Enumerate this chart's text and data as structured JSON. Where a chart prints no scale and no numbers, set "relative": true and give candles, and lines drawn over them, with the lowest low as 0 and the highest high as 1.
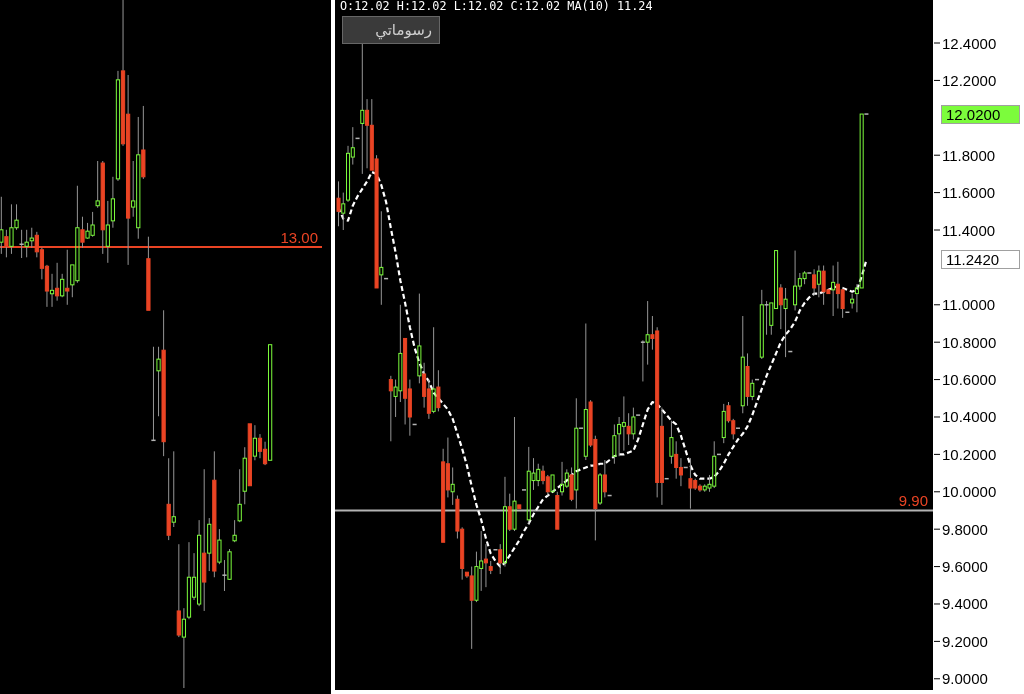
{
  "chart_data": [
    {
      "type": "candlestick",
      "relative": true,
      "categories": [
        null,
        null,
        null,
        null,
        null,
        null,
        null,
        null,
        null,
        null,
        null,
        null,
        null,
        null,
        null,
        null,
        null,
        null,
        null,
        null,
        null,
        null,
        null,
        null,
        null,
        null,
        null,
        null,
        null,
        null,
        null,
        null,
        null,
        null,
        null,
        null,
        null,
        null,
        null,
        null,
        null,
        null,
        null,
        null,
        null,
        null,
        null,
        null,
        null,
        null,
        null,
        null,
        null,
        null
      ],
      "ohlc": [
        [
          0.648,
          0.714,
          0.631,
          0.666
        ],
        [
          0.656,
          0.666,
          0.626,
          0.642
        ],
        [
          0.642,
          0.703,
          0.631,
          0.669
        ],
        [
          0.669,
          0.703,
          0.666,
          0.68
        ],
        [
          0.645,
          0.666,
          0.625,
          0.645
        ],
        [
          0.642,
          0.666,
          0.626,
          0.648
        ],
        [
          0.65,
          0.669,
          0.64,
          0.654
        ],
        [
          0.658,
          0.663,
          0.626,
          0.634
        ],
        [
          0.637,
          0.64,
          0.594,
          0.61
        ],
        [
          0.613,
          0.615,
          0.554,
          0.577
        ],
        [
          0.573,
          0.602,
          0.554,
          0.578
        ],
        [
          0.581,
          0.618,
          0.563,
          0.57
        ],
        [
          0.57,
          0.602,
          0.568,
          0.594
        ],
        [
          0.581,
          0.637,
          0.557,
          0.577
        ],
        [
          0.586,
          0.615,
          0.568,
          0.615
        ],
        [
          0.592,
          0.73,
          0.589,
          0.669
        ],
        [
          0.666,
          0.685,
          0.64,
          0.648
        ],
        [
          0.654,
          0.676,
          0.653,
          0.664
        ],
        [
          0.658,
          0.692,
          0.656,
          0.673
        ],
        [
          0.701,
          0.766,
          0.698,
          0.708
        ],
        [
          0.763,
          0.766,
          0.631,
          0.666
        ],
        [
          0.642,
          0.708,
          0.618,
          0.673
        ],
        [
          0.679,
          0.743,
          0.669,
          0.711
        ],
        [
          0.74,
          0.897,
          0.737,
          0.884
        ],
        [
          0.897,
          1.0,
          0.788,
          0.791
        ],
        [
          0.834,
          0.891,
          0.615,
          0.683
        ],
        [
          0.699,
          0.766,
          0.685,
          0.708
        ],
        [
          0.669,
          0.83,
          0.653,
          0.775
        ],
        [
          0.782,
          0.846,
          0.74,
          0.743
        ],
        [
          0.624,
          0.656,
          0.549,
          0.549
        ],
        [
          0.36,
          0.496,
          0.36,
          0.36
        ],
        [
          0.461,
          0.496,
          0.395,
          0.478
        ],
        [
          0.491,
          0.549,
          0.337,
          0.358
        ],
        [
          0.267,
          0.334,
          0.215,
          0.222
        ],
        [
          0.241,
          0.344,
          0.234,
          0.249
        ],
        [
          0.112,
          0.209,
          0.074,
          0.077
        ],
        [
          0.074,
          0.116,
          0.0,
          0.1
        ],
        [
          0.103,
          0.212,
          0.1,
          0.161
        ],
        [
          0.132,
          0.196,
          0.128,
          0.161
        ],
        [
          0.122,
          0.244,
          0.119,
          0.222
        ],
        [
          0.196,
          0.318,
          0.112,
          0.154
        ],
        [
          0.196,
          0.247,
          0.17,
          0.238
        ],
        [
          0.302,
          0.344,
          0.161,
          0.17
        ],
        [
          0.183,
          0.231,
          0.18,
          0.215
        ],
        [
          0.164,
          0.186,
          0.141,
          0.164
        ],
        [
          0.158,
          0.202,
          0.157,
          0.198
        ],
        [
          0.214,
          0.244,
          0.212,
          0.222
        ],
        [
          0.243,
          0.318,
          0.241,
          0.267
        ],
        [
          0.286,
          0.35,
          0.267,
          0.334
        ],
        [
          0.384,
          0.384,
          0.294,
          0.294
        ],
        [
          0.337,
          0.382,
          0.331,
          0.363
        ],
        [
          0.363,
          0.369,
          0.334,
          0.344
        ],
        [
          0.347,
          0.358,
          0.324,
          0.326
        ],
        [
          0.331,
          0.499,
          0.331,
          0.499
        ]
      ],
      "colors": [
        "#7CFC3C",
        "#EA4424",
        "#7CFC3C",
        "#7CFC3C",
        "#B4B4B4",
        "#7CFC3C",
        "#7CFC3C",
        "#EA4424",
        "#EA4424",
        "#EA4424",
        "#7CFC3C",
        "#EA4424",
        "#7CFC3C",
        "#EA4424",
        "#7CFC3C",
        "#7CFC3C",
        "#EA4424",
        "#7CFC3C",
        "#7CFC3C",
        "#7CFC3C",
        "#EA4424",
        "#7CFC3C",
        "#7CFC3C",
        "#7CFC3C",
        "#EA4424",
        "#EA4424",
        "#7CFC3C",
        "#7CFC3C",
        "#EA4424",
        "#EA4424",
        "#B4B4B4",
        "#7CFC3C",
        "#EA4424",
        "#EA4424",
        "#7CFC3C",
        "#EA4424",
        "#7CFC3C",
        "#7CFC3C",
        "#7CFC3C",
        "#7CFC3C",
        "#EA4424",
        "#7CFC3C",
        "#EA4424",
        "#7CFC3C",
        "#B4B4B4",
        "#7CFC3C",
        "#7CFC3C",
        "#7CFC3C",
        "#7CFC3C",
        "#EA4424",
        "#7CFC3C",
        "#EA4424",
        "#EA4424",
        "#7CFC3C"
      ],
      "ref_lines": [
        {
          "axis": "y",
          "value": 0.641,
          "color": "#EA4424"
        }
      ],
      "annotations": [
        {
          "text": "13.00",
          "y": 0.641
        }
      ]
    },
    {
      "type": "candlestick",
      "subtitle": "O:12.02 H:12.02 L:12.02 C:12.02 MA(10) 11.24",
      "categories": [
        null,
        null,
        null,
        null,
        null,
        null,
        null,
        null,
        null,
        null,
        null,
        null,
        null,
        null,
        null,
        null,
        null,
        null,
        null,
        null,
        null,
        null,
        null,
        null,
        null,
        null,
        null,
        null,
        null,
        null,
        null,
        null,
        null,
        null,
        null,
        null,
        null,
        null,
        null,
        null,
        null,
        null,
        null,
        null,
        null,
        null,
        null,
        null,
        null,
        null,
        null,
        null,
        null,
        null,
        null,
        null,
        null,
        null,
        null,
        null,
        null,
        null,
        null,
        null,
        null,
        null,
        null,
        null,
        null,
        null,
        null,
        null,
        null,
        null,
        null,
        null,
        null,
        null,
        null,
        null,
        null,
        null,
        null,
        null,
        null,
        null,
        null,
        null,
        null,
        null,
        null,
        null,
        null,
        null,
        null,
        null,
        null,
        null,
        null,
        null,
        null,
        null,
        null,
        null,
        null,
        null,
        null,
        null,
        null,
        null,
        null,
        null
      ],
      "ohlc": [
        [
          11.57,
          11.66,
          11.42,
          11.5
        ],
        [
          11.49,
          11.6,
          11.4,
          11.54
        ],
        [
          11.56,
          11.85,
          11.55,
          11.81
        ],
        [
          11.79,
          11.95,
          11.75,
          11.84
        ],
        [
          11.89,
          11.89,
          11.89,
          11.89
        ],
        [
          11.97,
          12.4,
          11.7,
          12.04
        ],
        [
          12.04,
          12.1,
          11.73,
          11.96
        ],
        [
          11.96,
          12.1,
          11.72,
          11.72
        ],
        [
          11.78,
          11.8,
          11.09,
          11.09
        ],
        [
          11.16,
          11.5,
          11.0,
          11.2
        ],
        [
          11.14,
          11.14,
          11.14,
          11.14
        ],
        [
          10.6,
          10.62,
          10.27,
          10.54
        ],
        [
          10.51,
          10.6,
          10.4,
          10.56
        ],
        [
          10.54,
          11.0,
          10.48,
          10.74
        ],
        [
          10.82,
          10.82,
          10.36,
          10.5
        ],
        [
          10.55,
          10.6,
          10.3,
          10.4
        ],
        [
          10.36,
          10.36,
          10.36,
          10.36
        ],
        [
          10.62,
          11.06,
          10.58,
          10.78
        ],
        [
          10.63,
          10.69,
          10.45,
          10.51
        ],
        [
          10.55,
          10.6,
          10.39,
          10.42
        ],
        [
          10.43,
          10.88,
          10.42,
          10.55
        ],
        [
          10.56,
          10.65,
          10.43,
          10.45
        ],
        [
          10.16,
          10.23,
          9.73,
          9.73
        ],
        [
          10.15,
          10.29,
          9.97,
          10.01
        ],
        [
          10.0,
          10.13,
          9.93,
          10.04
        ],
        [
          9.96,
          9.98,
          9.75,
          9.79
        ],
        [
          9.8,
          9.81,
          9.53,
          9.59
        ],
        [
          9.57,
          9.57,
          9.54,
          9.55
        ],
        [
          9.55,
          9.6,
          9.16,
          9.42
        ],
        [
          9.42,
          9.68,
          9.41,
          9.6
        ],
        [
          9.59,
          9.79,
          9.47,
          9.63
        ],
        [
          9.64,
          9.72,
          9.49,
          9.62
        ],
        [
          9.6,
          9.63,
          9.56,
          9.58
        ],
        [
          9.69,
          9.69,
          9.69,
          9.69
        ],
        [
          9.69,
          9.72,
          9.56,
          9.62
        ],
        [
          9.62,
          10.08,
          9.6,
          9.92
        ],
        [
          9.92,
          9.99,
          9.79,
          9.8
        ],
        [
          9.8,
          10.4,
          9.79,
          9.95
        ],
        [
          9.93,
          9.93,
          9.91,
          9.91
        ],
        [
          10.01,
          10.01,
          10.01,
          10.01
        ],
        [
          9.85,
          10.24,
          9.83,
          10.11
        ],
        [
          10.06,
          10.18,
          10.01,
          10.1
        ],
        [
          10.06,
          10.15,
          10.03,
          10.12
        ],
        [
          10.11,
          10.14,
          10.04,
          10.06
        ],
        [
          10.08,
          10.09,
          9.98,
          10.0
        ],
        [
          10.0,
          10.09,
          10.0,
          10.09
        ],
        [
          9.98,
          10.0,
          9.8,
          9.8
        ],
        [
          10.0,
          10.16,
          9.98,
          10.04
        ],
        [
          10.03,
          10.12,
          10.02,
          10.1
        ],
        [
          10.09,
          10.13,
          9.95,
          9.96
        ],
        [
          10.01,
          10.5,
          9.91,
          10.34
        ],
        [
          10.34,
          10.34,
          10.34,
          10.34
        ],
        [
          10.19,
          10.9,
          10.17,
          10.44
        ],
        [
          10.48,
          10.49,
          10.24,
          10.25
        ],
        [
          10.28,
          10.3,
          9.74,
          9.91
        ],
        [
          9.94,
          10.1,
          9.93,
          10.09
        ],
        [
          10.09,
          10.17,
          9.97,
          10.0
        ],
        [
          9.98,
          9.98,
          9.98,
          9.98
        ],
        [
          10.19,
          10.36,
          10.15,
          10.3
        ],
        [
          10.31,
          10.4,
          10.19,
          10.36
        ],
        [
          10.35,
          10.51,
          10.22,
          10.37
        ],
        [
          10.35,
          10.42,
          10.25,
          10.31
        ],
        [
          10.31,
          10.45,
          10.28,
          10.4
        ],
        [
          10.41,
          10.41,
          10.41,
          10.41
        ],
        [
          10.8,
          10.81,
          10.59,
          10.8
        ],
        [
          10.8,
          11.02,
          10.68,
          10.84
        ],
        [
          10.84,
          10.94,
          10.76,
          10.82
        ],
        [
          10.86,
          10.88,
          9.97,
          10.05
        ],
        [
          10.35,
          10.45,
          9.93,
          10.05
        ],
        [
          10.07,
          10.07,
          10.07,
          10.07
        ],
        [
          10.19,
          10.38,
          10.15,
          10.29
        ],
        [
          10.2,
          10.27,
          10.07,
          10.13
        ],
        [
          10.13,
          10.18,
          10.03,
          10.09
        ],
        [
          10.13,
          10.13,
          10.13,
          10.13
        ],
        [
          10.07,
          10.18,
          9.91,
          10.02
        ],
        [
          10.06,
          10.07,
          10.01,
          10.02
        ],
        [
          10.03,
          10.04,
          10.0,
          10.01
        ],
        [
          10.01,
          10.04,
          10.0,
          10.03
        ],
        [
          10.02,
          10.09,
          10.0,
          10.04
        ],
        [
          10.03,
          10.27,
          10.02,
          10.19
        ],
        [
          10.2,
          10.2,
          10.2,
          10.2
        ],
        [
          10.29,
          10.47,
          10.26,
          10.43
        ],
        [
          10.46,
          10.48,
          10.37,
          10.38
        ],
        [
          10.38,
          10.39,
          10.28,
          10.31
        ],
        [
          10.34,
          10.34,
          10.34,
          10.34
        ],
        [
          10.46,
          10.94,
          10.42,
          10.72
        ],
        [
          10.67,
          10.74,
          10.46,
          10.51
        ],
        [
          10.51,
          10.6,
          10.49,
          10.58
        ],
        [
          10.6,
          10.6,
          10.6,
          10.6
        ],
        [
          10.72,
          11.08,
          10.71,
          11.0
        ],
        [
          11.0,
          11.02,
          10.84,
          11.0
        ],
        [
          10.89,
          11.01,
          10.84,
          11.01
        ],
        [
          10.98,
          11.29,
          10.98,
          11.29
        ],
        [
          11.09,
          11.11,
          10.87,
          11.0
        ],
        [
          10.98,
          11.09,
          10.72,
          11.03
        ],
        [
          10.75,
          10.75,
          10.75,
          10.75
        ],
        [
          11.0,
          11.29,
          10.97,
          11.1
        ],
        [
          11.1,
          11.17,
          11.08,
          11.14
        ],
        [
          11.14,
          11.18,
          11.11,
          11.17
        ],
        [
          11.17,
          11.17,
          11.17,
          11.17
        ],
        [
          11.16,
          11.19,
          11.05,
          11.09
        ],
        [
          11.11,
          11.21,
          11.04,
          11.18
        ],
        [
          11.18,
          11.21,
          11.0,
          11.07
        ],
        [
          11.08,
          11.08,
          11.06,
          11.06
        ],
        [
          11.08,
          11.21,
          10.94,
          11.12
        ],
        [
          11.11,
          11.23,
          10.98,
          11.06
        ],
        [
          11.08,
          11.09,
          10.93,
          10.98
        ],
        [
          10.96,
          10.96,
          10.96,
          10.96
        ],
        [
          11.01,
          11.06,
          10.98,
          11.03
        ],
        [
          11.06,
          11.11,
          10.96,
          11.09
        ],
        [
          11.09,
          12.02,
          11.09,
          12.02
        ],
        [
          12.02,
          12.02,
          12.02,
          12.02
        ]
      ],
      "colors": [
        "#EA4424",
        "#7CFC3C",
        "#7CFC3C",
        "#7CFC3C",
        "#B4B4B4",
        "#7CFC3C",
        "#EA4424",
        "#EA4424",
        "#EA4424",
        "#7CFC3C",
        "#B4B4B4",
        "#EA4424",
        "#7CFC3C",
        "#7CFC3C",
        "#EA4424",
        "#EA4424",
        "#B4B4B4",
        "#7CFC3C",
        "#EA4424",
        "#EA4424",
        "#7CFC3C",
        "#EA4424",
        "#EA4424",
        "#EA4424",
        "#7CFC3C",
        "#EA4424",
        "#EA4424",
        "#EA4424",
        "#EA4424",
        "#7CFC3C",
        "#7CFC3C",
        "#EA4424",
        "#EA4424",
        "#B4B4B4",
        "#EA4424",
        "#7CFC3C",
        "#EA4424",
        "#7CFC3C",
        "#EA4424",
        "#B4B4B4",
        "#7CFC3C",
        "#7CFC3C",
        "#7CFC3C",
        "#EA4424",
        "#EA4424",
        "#7CFC3C",
        "#EA4424",
        "#7CFC3C",
        "#7CFC3C",
        "#EA4424",
        "#7CFC3C",
        "#B4B4B4",
        "#7CFC3C",
        "#EA4424",
        "#EA4424",
        "#7CFC3C",
        "#EA4424",
        "#B4B4B4",
        "#7CFC3C",
        "#7CFC3C",
        "#7CFC3C",
        "#EA4424",
        "#7CFC3C",
        "#B4B4B4",
        "#B4B4B4",
        "#7CFC3C",
        "#EA4424",
        "#EA4424",
        "#EA4424",
        "#B4B4B4",
        "#7CFC3C",
        "#EA4424",
        "#EA4424",
        "#B4B4B4",
        "#EA4424",
        "#EA4424",
        "#EA4424",
        "#7CFC3C",
        "#7CFC3C",
        "#7CFC3C",
        "#B4B4B4",
        "#7CFC3C",
        "#EA4424",
        "#EA4424",
        "#B4B4B4",
        "#7CFC3C",
        "#EA4424",
        "#7CFC3C",
        "#B4B4B4",
        "#7CFC3C",
        "#B4B4B4",
        "#7CFC3C",
        "#7CFC3C",
        "#EA4424",
        "#7CFC3C",
        "#B4B4B4",
        "#7CFC3C",
        "#7CFC3C",
        "#7CFC3C",
        "#B4B4B4",
        "#EA4424",
        "#7CFC3C",
        "#EA4424",
        "#EA4424",
        "#7CFC3C",
        "#EA4424",
        "#EA4424",
        "#B4B4B4",
        "#7CFC3C",
        "#7CFC3C",
        "#7CFC3C",
        "#B4B4B4"
      ],
      "series": [
        {
          "type": "line",
          "color": "#FFFFFF",
          "line_style": "dashed",
          "values": [
            11.52,
            11.46,
            11.45,
            11.53,
            11.58,
            11.62,
            11.66,
            11.71,
            11.7,
            11.64,
            11.55,
            11.41,
            11.28,
            11.13,
            11.01,
            10.88,
            10.77,
            10.69,
            10.63,
            10.59,
            10.53,
            10.5,
            10.47,
            10.44,
            10.39,
            10.31,
            10.23,
            10.14,
            10.03,
            9.93,
            9.85,
            9.75,
            9.67,
            9.63,
            9.6,
            9.62,
            9.66,
            9.7,
            9.74,
            9.79,
            9.83,
            9.88,
            9.92,
            9.96,
            9.98,
            10.0,
            10.02,
            10.04,
            10.06,
            10.09,
            10.11,
            10.12,
            10.13,
            10.14,
            10.14,
            10.15,
            10.15,
            10.17,
            10.19,
            10.2,
            10.2,
            10.21,
            10.22,
            10.28,
            10.36,
            10.44,
            10.48,
            10.47,
            10.44,
            10.41,
            10.38,
            10.36,
            10.3,
            10.22,
            10.14,
            10.09,
            10.07,
            10.07,
            10.07,
            10.08,
            10.11,
            10.15,
            10.2,
            10.24,
            10.28,
            10.31,
            10.35,
            10.41,
            10.48,
            10.55,
            10.62,
            10.68,
            10.74,
            10.8,
            10.84,
            10.87,
            10.91,
            10.97,
            11.01,
            11.04,
            11.06,
            11.06,
            11.07,
            11.08,
            11.09,
            11.1,
            11.09,
            11.08,
            11.07,
            11.08,
            11.15,
            11.24
          ]
        }
      ],
      "ylim": [
        8.94,
        12.63
      ],
      "yticks": [
        {
          "value": 9.0,
          "label": "9.0000"
        },
        {
          "value": 9.2,
          "label": "9.2000"
        },
        {
          "value": 9.4,
          "label": "9.4000"
        },
        {
          "value": 9.6,
          "label": "9.6000"
        },
        {
          "value": 9.8,
          "label": "9.8000"
        },
        {
          "value": 10.0,
          "label": "10.0000"
        },
        {
          "value": 10.2,
          "label": "10.2000"
        },
        {
          "value": 10.4,
          "label": "10.4000"
        },
        {
          "value": 10.6,
          "label": "10.6000"
        },
        {
          "value": 10.8,
          "label": "10.8000"
        },
        {
          "value": 11.0,
          "label": "11.0000"
        },
        {
          "value": 11.4,
          "label": "11.4000"
        },
        {
          "value": 11.6,
          "label": "11.6000"
        },
        {
          "value": 11.8,
          "label": "11.8000"
        },
        {
          "value": 12.2,
          "label": "12.2000"
        },
        {
          "value": 12.4,
          "label": "12.4000"
        }
      ],
      "ref_lines": [
        {
          "axis": "y",
          "value": 9.9,
          "label": "9.90",
          "color": "#B4B4B4"
        }
      ],
      "annotations": [
        "12.0200",
        "11.2420",
        "رسوماتي"
      ]
    }
  ]
}
